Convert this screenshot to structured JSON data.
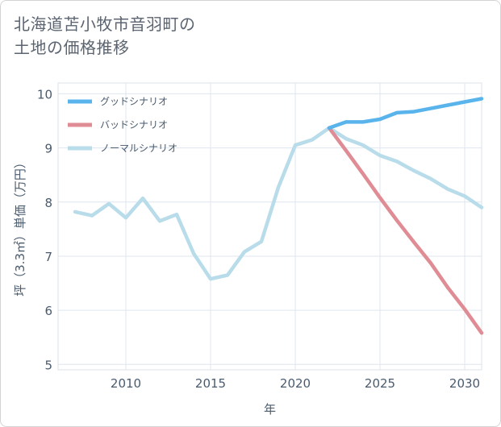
{
  "title_lines": [
    "北海道苫小牧市音羽町の",
    "土地の価格推移"
  ],
  "chart_data": {
    "type": "line",
    "xlabel": "年",
    "ylabel": "坪（3.3㎡）単価（万円）",
    "xlim": [
      2006,
      2031
    ],
    "ylim": [
      4.9,
      10.2
    ],
    "x_ticks": [
      "2010",
      "2015",
      "2020",
      "2025",
      "2030"
    ],
    "y_ticks": [
      "5",
      "6",
      "7",
      "8",
      "9",
      "10"
    ],
    "grid": true,
    "legend_position": "top-left",
    "series": [
      {
        "name": "グッドシナリオ",
        "color": "#5ab4ec",
        "x": [
          2022,
          2023,
          2024,
          2025,
          2026,
          2027,
          2028,
          2029,
          2030,
          2031
        ],
        "y": [
          9.37,
          9.48,
          9.48,
          9.53,
          9.65,
          9.67,
          9.73,
          9.79,
          9.85,
          9.91
        ]
      },
      {
        "name": "バッドシナリオ",
        "color": "#e08c94",
        "x": [
          2022,
          2023,
          2024,
          2025,
          2026,
          2027,
          2028,
          2029,
          2030,
          2031
        ],
        "y": [
          9.37,
          8.95,
          8.52,
          8.08,
          7.66,
          7.26,
          6.87,
          6.42,
          6.02,
          5.58
        ]
      },
      {
        "name": "ノーマルシナリオ",
        "color": "#b8dcea",
        "x": [
          2007,
          2008,
          2009,
          2010,
          2011,
          2012,
          2013,
          2014,
          2015,
          2016,
          2017,
          2018,
          2019,
          2020,
          2021,
          2022,
          2023,
          2024,
          2025,
          2026,
          2027,
          2028,
          2029,
          2030,
          2031
        ],
        "y": [
          7.82,
          7.75,
          7.97,
          7.71,
          8.07,
          7.65,
          7.77,
          7.05,
          6.58,
          6.65,
          7.08,
          7.27,
          8.27,
          9.05,
          9.15,
          9.37,
          9.17,
          9.05,
          8.86,
          8.75,
          8.58,
          8.43,
          8.24,
          8.11,
          7.9
        ]
      }
    ]
  }
}
